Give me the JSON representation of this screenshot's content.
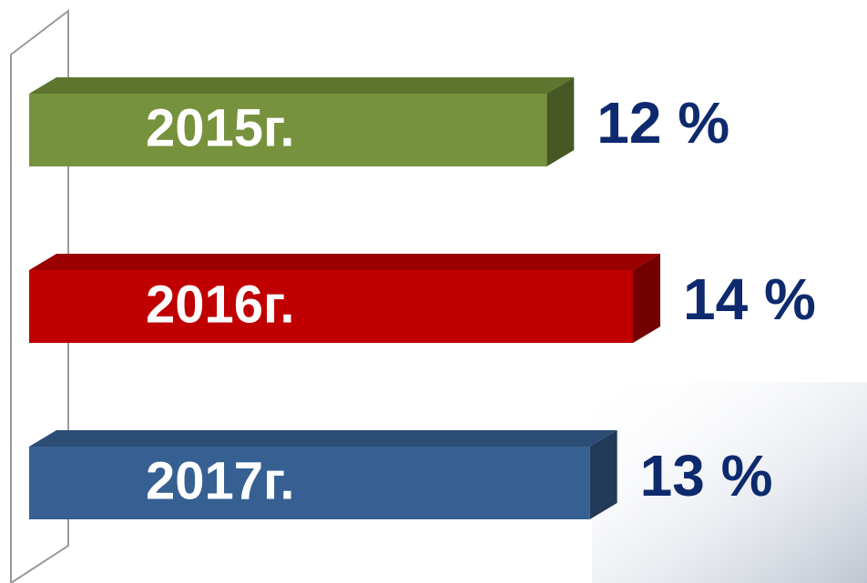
{
  "chart_data": {
    "type": "bar",
    "orientation": "horizontal",
    "categories": [
      "2015г.",
      "2016г.",
      "2017г."
    ],
    "values": [
      12,
      14,
      13
    ],
    "value_labels": [
      "12 %",
      "14 %",
      "13 %"
    ],
    "colors": [
      "#76923c",
      "#c00000",
      "#376092"
    ]
  }
}
